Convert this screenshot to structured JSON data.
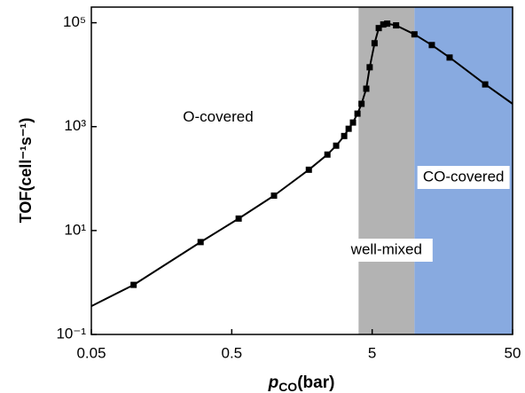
{
  "chart_data": {
    "type": "line",
    "x_label": {
      "symbol": "p",
      "subscript": "CO",
      "unit": "(bar)"
    },
    "y_label": "TOF(cell⁻¹s⁻¹)",
    "xscale": "log",
    "yscale": "log",
    "xlim": [
      0.05,
      50
    ],
    "ylim": [
      0.1,
      200000
    ],
    "xticks": [
      0.05,
      0.5,
      5,
      50
    ],
    "yticks": [
      {
        "value": 0.1,
        "label": "10⁻¹"
      },
      {
        "value": 10,
        "label": "10¹"
      },
      {
        "value": 1000,
        "label": "10³"
      },
      {
        "value": 100000,
        "label": "10⁵"
      }
    ],
    "regions": [
      {
        "label": "well-mixed",
        "xlim": [
          4,
          10
        ],
        "color": "#b3b3b3"
      },
      {
        "label": "CO-covered",
        "xlim": [
          10,
          50
        ],
        "color": "#88aae0"
      }
    ],
    "annotations": [
      {
        "text": "O-covered",
        "x": 0.4,
        "y": 1500
      }
    ],
    "series": [
      {
        "marker": "none",
        "color": "#000000",
        "x": [
          0.05,
          0.1,
          0.3,
          0.56,
          1.0,
          1.77,
          2.4,
          2.77,
          3.16,
          3.4,
          3.65,
          3.93,
          4.2,
          4.54,
          4.8,
          5.2,
          5.57,
          6.0,
          6.4,
          7.4,
          10,
          13.3,
          17.8,
          31.9,
          50
        ],
        "values": [
          0.35,
          0.9,
          6.0,
          17,
          47,
          148,
          290,
          430,
          660,
          910,
          1200,
          1780,
          2750,
          5370,
          13900,
          40300,
          78900,
          92500,
          96100,
          89000,
          59800,
          37200,
          21400,
          6500,
          2750
        ]
      },
      {
        "marker": "square",
        "color": "#000000",
        "x": [
          0.1,
          0.3,
          0.56,
          1.0,
          1.77,
          2.4,
          2.77,
          3.16,
          3.4,
          3.65,
          3.93,
          4.2,
          4.54,
          4.8,
          5.2,
          5.57,
          6.0,
          6.4,
          7.4,
          10,
          13.3,
          17.8,
          31.9
        ],
        "values": [
          0.9,
          6.0,
          17,
          47,
          148,
          290,
          430,
          660,
          910,
          1200,
          1780,
          2750,
          5370,
          13900,
          40300,
          78900,
          92500,
          96100,
          89000,
          59800,
          37200,
          21400,
          6500
        ]
      }
    ]
  }
}
